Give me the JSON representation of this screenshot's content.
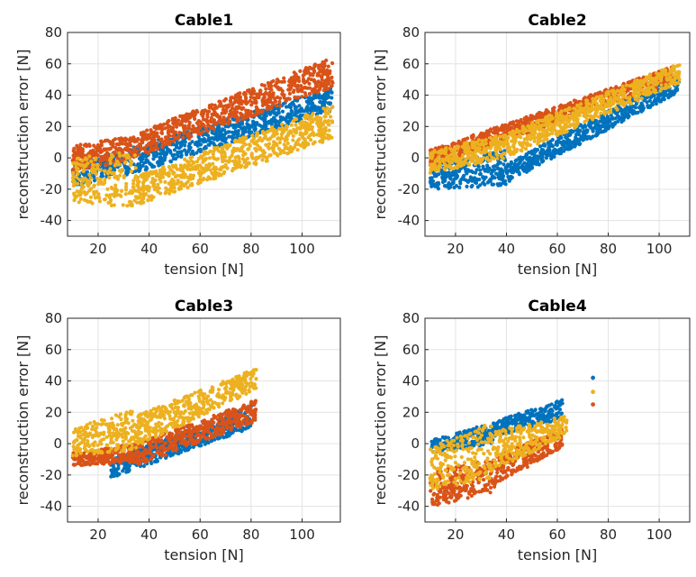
{
  "chart_data": [
    {
      "type": "scatter",
      "title": "Cable1",
      "xlabel": "tension [N]",
      "ylabel": "reconstruction error [N]",
      "xlim": [
        8,
        115
      ],
      "ylim": [
        -50,
        80
      ],
      "xticks": [
        20,
        40,
        60,
        80,
        100
      ],
      "yticks": [
        -40,
        -20,
        0,
        20,
        40,
        60,
        80
      ],
      "grid": true,
      "series": [
        {
          "color": "#0072bd",
          "bands": [
            {
              "x": [
                10,
                30
              ],
              "y0": [
                -20,
                -8
              ],
              "y1": [
                -5,
                5
              ]
            },
            {
              "x": [
                30,
                112
              ],
              "y0": [
                -12,
                30
              ],
              "y1": [
                5,
                45
              ]
            }
          ]
        },
        {
          "color": "#d95319",
          "bands": [
            {
              "x": [
                10,
                35
              ],
              "y0": [
                -10,
                0
              ],
              "y1": [
                8,
                14
              ]
            },
            {
              "x": [
                35,
                112
              ],
              "y0": [
                0,
                45
              ],
              "y1": [
                16,
                64
              ]
            }
          ]
        },
        {
          "color": "#edb120",
          "bands": [
            {
              "x": [
                10,
                35
              ],
              "y0": [
                -28,
                -32
              ],
              "y1": [
                0,
                4
              ]
            },
            {
              "x": [
                35,
                112
              ],
              "y0": [
                -30,
                12
              ],
              "y1": [
                -12,
                34
              ]
            }
          ]
        }
      ]
    },
    {
      "type": "scatter",
      "title": "Cable2",
      "xlabel": "tension [N]",
      "ylabel": "reconstruction error [N]",
      "xlim": [
        8,
        112
      ],
      "ylim": [
        -50,
        80
      ],
      "xticks": [
        20,
        40,
        60,
        80,
        100
      ],
      "yticks": [
        -40,
        -20,
        0,
        20,
        40,
        60,
        80
      ],
      "grid": true,
      "series": [
        {
          "color": "#0072bd",
          "bands": [
            {
              "x": [
                10,
                40
              ],
              "y0": [
                -20,
                -18
              ],
              "y1": [
                -4,
                5
              ]
            },
            {
              "x": [
                40,
                108
              ],
              "y0": [
                -16,
                42
              ],
              "y1": [
                -4,
                55
              ]
            }
          ]
        },
        {
          "color": "#d95319",
          "bands": [
            {
              "x": [
                10,
                105
              ],
              "y0": [
                -6,
                48
              ],
              "y1": [
                5,
                58
              ]
            }
          ]
        },
        {
          "color": "#edb120",
          "bands": [
            {
              "x": [
                10,
                40
              ],
              "y0": [
                -10,
                0
              ],
              "y1": [
                4,
                16
              ]
            },
            {
              "x": [
                40,
                108
              ],
              "y0": [
                0,
                48
              ],
              "y1": [
                16,
                61
              ]
            }
          ]
        }
      ]
    },
    {
      "type": "scatter",
      "title": "Cable3",
      "xlabel": "tension [N]",
      "ylabel": "reconstruction error [N]",
      "xlim": [
        8,
        115
      ],
      "ylim": [
        -50,
        80
      ],
      "xticks": [
        20,
        40,
        60,
        80,
        100
      ],
      "yticks": [
        -40,
        -20,
        0,
        20,
        40,
        60,
        80
      ],
      "grid": true,
      "series": [
        {
          "color": "#0072bd",
          "bands": [
            {
              "x": [
                25,
                80
              ],
              "y0": [
                -22,
                10
              ],
              "y1": [
                -10,
                24
              ]
            }
          ]
        },
        {
          "color": "#d95319",
          "bands": [
            {
              "x": [
                10,
                35
              ],
              "y0": [
                -14,
                -12
              ],
              "y1": [
                -6,
                0
              ]
            },
            {
              "x": [
                35,
                82
              ],
              "y0": [
                -14,
                14
              ],
              "y1": [
                0,
                28
              ]
            }
          ]
        },
        {
          "color": "#edb120",
          "bands": [
            {
              "x": [
                10,
                35
              ],
              "y0": [
                -8,
                -4
              ],
              "y1": [
                10,
                22
              ]
            },
            {
              "x": [
                35,
                82
              ],
              "y0": [
                -2,
                34
              ],
              "y1": [
                18,
                48
              ]
            }
          ]
        }
      ]
    },
    {
      "type": "scatter",
      "title": "Cable4",
      "xlabel": "tension [N]",
      "ylabel": "reconstruction error [N]",
      "xlim": [
        8,
        112
      ],
      "ylim": [
        -50,
        80
      ],
      "xticks": [
        20,
        40,
        60,
        80,
        100
      ],
      "yticks": [
        -40,
        -20,
        0,
        20,
        40,
        60,
        80
      ],
      "grid": true,
      "series": [
        {
          "color": "#0072bd",
          "bands": [
            {
              "x": [
                10,
                35
              ],
              "y0": [
                -6,
                0
              ],
              "y1": [
                2,
                14
              ]
            },
            {
              "x": [
                35,
                62
              ],
              "y0": [
                4,
                16
              ],
              "y1": [
                14,
                28
              ]
            }
          ],
          "extra_points": [
            [
              74,
              42
            ]
          ]
        },
        {
          "color": "#d95319",
          "bands": [
            {
              "x": [
                10,
                35
              ],
              "y0": [
                -40,
                -32
              ],
              "y1": [
                -18,
                -10
              ]
            },
            {
              "x": [
                35,
                62
              ],
              "y0": [
                -28,
                -2
              ],
              "y1": [
                -8,
                10
              ]
            }
          ],
          "extra_points": [
            [
              74,
              25
            ]
          ]
        },
        {
          "color": "#edb120",
          "bands": [
            {
              "x": [
                10,
                35
              ],
              "y0": [
                -30,
                -22
              ],
              "y1": [
                -2,
                14
              ]
            },
            {
              "x": [
                35,
                64
              ],
              "y0": [
                -18,
                6
              ],
              "y1": [
                8,
                18
              ]
            }
          ],
          "extra_points": [
            [
              74,
              33
            ]
          ]
        }
      ]
    }
  ]
}
